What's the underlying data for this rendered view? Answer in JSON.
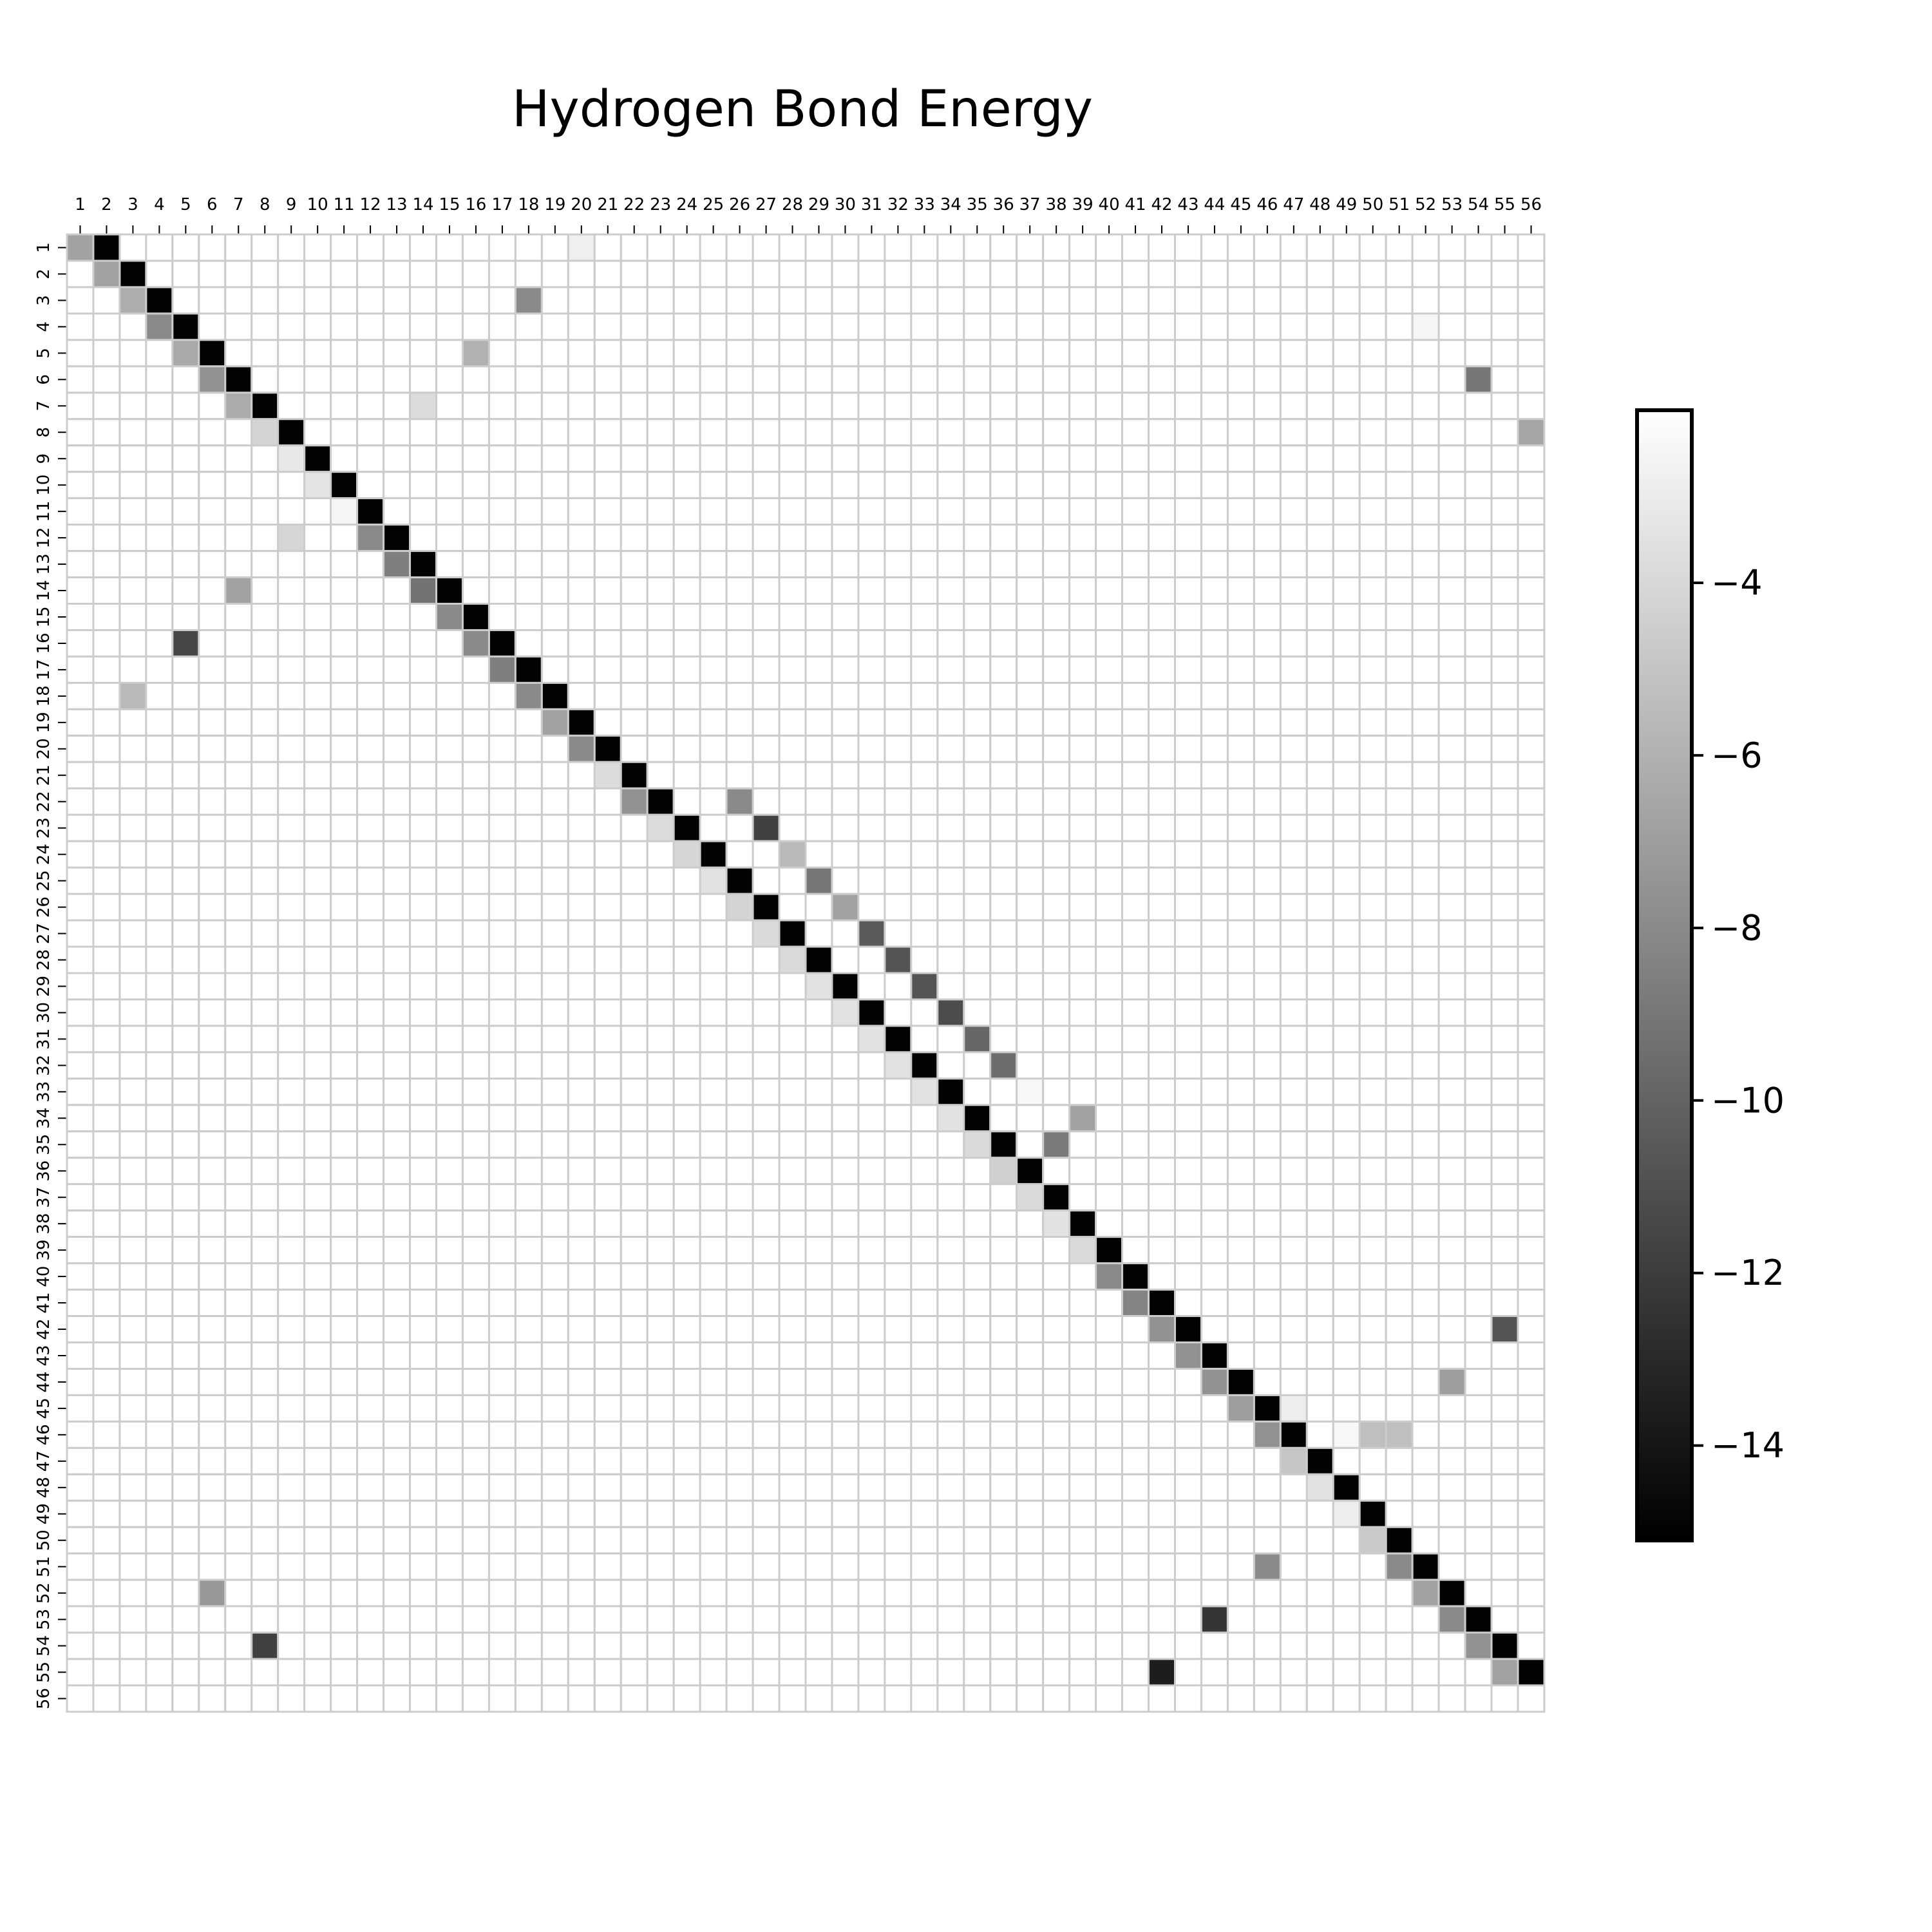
{
  "chart_data": {
    "type": "heatmap",
    "title": "Hydrogen Bond Energy",
    "xlabel": "",
    "ylabel": "",
    "x_tick_labels": [
      "1",
      "2",
      "3",
      "4",
      "5",
      "6",
      "7",
      "8",
      "9",
      "10",
      "11",
      "12",
      "13",
      "14",
      "15",
      "16",
      "17",
      "18",
      "19",
      "20",
      "21",
      "22",
      "23",
      "24",
      "25",
      "26",
      "27",
      "28",
      "29",
      "30",
      "31",
      "32",
      "33",
      "34",
      "35",
      "36",
      "37",
      "38",
      "39",
      "40",
      "41",
      "42",
      "43",
      "44",
      "45",
      "46",
      "47",
      "48",
      "49",
      "50",
      "51",
      "52",
      "53",
      "54",
      "55",
      "56"
    ],
    "y_tick_labels": [
      "1",
      "2",
      "3",
      "4",
      "5",
      "6",
      "7",
      "8",
      "9",
      "10",
      "11",
      "12",
      "13",
      "14",
      "15",
      "16",
      "17",
      "18",
      "19",
      "20",
      "21",
      "22",
      "23",
      "24",
      "25",
      "26",
      "27",
      "28",
      "29",
      "30",
      "31",
      "32",
      "33",
      "34",
      "35",
      "36",
      "37",
      "38",
      "39",
      "40",
      "41",
      "42",
      "43",
      "44",
      "45",
      "46",
      "47",
      "48",
      "49",
      "50",
      "51",
      "52",
      "53",
      "54",
      "55",
      "56"
    ],
    "x_ticks_position": "top",
    "cell_gap_color": "#cccccc",
    "empty_value": -2,
    "colormap": "gray",
    "color_range": [
      -15.1,
      -2.0
    ],
    "colorbar": {
      "position": "right",
      "ticks": [
        -4,
        -6,
        -8,
        -10,
        -12,
        -14
      ],
      "tick_labels": [
        "−4",
        "−6",
        "−8",
        "−10",
        "−12",
        "−14"
      ]
    },
    "cells": [
      {
        "row": 1,
        "col": 1,
        "value": -6.8
      },
      {
        "row": 1,
        "col": 2,
        "value": -15.0
      },
      {
        "row": 1,
        "col": 20,
        "value": -2.8
      },
      {
        "row": 2,
        "col": 2,
        "value": -6.8
      },
      {
        "row": 2,
        "col": 3,
        "value": -15.0
      },
      {
        "row": 3,
        "col": 3,
        "value": -6.2
      },
      {
        "row": 3,
        "col": 4,
        "value": -15.0
      },
      {
        "row": 3,
        "col": 18,
        "value": -8.0
      },
      {
        "row": 4,
        "col": 4,
        "value": -8.0
      },
      {
        "row": 4,
        "col": 5,
        "value": -15.0
      },
      {
        "row": 4,
        "col": 52,
        "value": -2.5
      },
      {
        "row": 5,
        "col": 5,
        "value": -6.4
      },
      {
        "row": 5,
        "col": 6,
        "value": -15.0
      },
      {
        "row": 5,
        "col": 16,
        "value": -6.0
      },
      {
        "row": 6,
        "col": 6,
        "value": -7.6
      },
      {
        "row": 6,
        "col": 7,
        "value": -15.0
      },
      {
        "row": 6,
        "col": 54,
        "value": -9.0
      },
      {
        "row": 7,
        "col": 7,
        "value": -6.3
      },
      {
        "row": 7,
        "col": 8,
        "value": -15.0
      },
      {
        "row": 7,
        "col": 14,
        "value": -3.8
      },
      {
        "row": 8,
        "col": 8,
        "value": -4.2
      },
      {
        "row": 8,
        "col": 9,
        "value": -15.0
      },
      {
        "row": 8,
        "col": 56,
        "value": -6.6
      },
      {
        "row": 9,
        "col": 9,
        "value": -3.2
      },
      {
        "row": 9,
        "col": 10,
        "value": -15.0
      },
      {
        "row": 10,
        "col": 10,
        "value": -3.4
      },
      {
        "row": 10,
        "col": 11,
        "value": -15.0
      },
      {
        "row": 11,
        "col": 11,
        "value": -2.5
      },
      {
        "row": 11,
        "col": 12,
        "value": -15.0
      },
      {
        "row": 12,
        "col": 9,
        "value": -4.1
      },
      {
        "row": 12,
        "col": 12,
        "value": -8.0
      },
      {
        "row": 12,
        "col": 13,
        "value": -15.0
      },
      {
        "row": 13,
        "col": 13,
        "value": -8.6
      },
      {
        "row": 13,
        "col": 14,
        "value": -15.0
      },
      {
        "row": 14,
        "col": 7,
        "value": -6.8
      },
      {
        "row": 14,
        "col": 14,
        "value": -9.2
      },
      {
        "row": 14,
        "col": 15,
        "value": -15.0
      },
      {
        "row": 15,
        "col": 15,
        "value": -8.0
      },
      {
        "row": 15,
        "col": 16,
        "value": -15.0
      },
      {
        "row": 16,
        "col": 5,
        "value": -11.5
      },
      {
        "row": 16,
        "col": 16,
        "value": -8.0
      },
      {
        "row": 16,
        "col": 17,
        "value": -15.0
      },
      {
        "row": 17,
        "col": 17,
        "value": -8.6
      },
      {
        "row": 17,
        "col": 18,
        "value": -15.0
      },
      {
        "row": 18,
        "col": 3,
        "value": -5.6
      },
      {
        "row": 18,
        "col": 18,
        "value": -8.0
      },
      {
        "row": 18,
        "col": 19,
        "value": -15.0
      },
      {
        "row": 19,
        "col": 19,
        "value": -6.8
      },
      {
        "row": 19,
        "col": 20,
        "value": -15.0
      },
      {
        "row": 20,
        "col": 20,
        "value": -8.0
      },
      {
        "row": 20,
        "col": 21,
        "value": -15.0
      },
      {
        "row": 21,
        "col": 21,
        "value": -3.8
      },
      {
        "row": 21,
        "col": 22,
        "value": -15.0
      },
      {
        "row": 22,
        "col": 22,
        "value": -7.6
      },
      {
        "row": 22,
        "col": 23,
        "value": -15.0
      },
      {
        "row": 22,
        "col": 26,
        "value": -8.0
      },
      {
        "row": 23,
        "col": 23,
        "value": -3.8
      },
      {
        "row": 23,
        "col": 24,
        "value": -15.0
      },
      {
        "row": 23,
        "col": 27,
        "value": -11.8
      },
      {
        "row": 24,
        "col": 24,
        "value": -4.1
      },
      {
        "row": 24,
        "col": 25,
        "value": -15.0
      },
      {
        "row": 24,
        "col": 28,
        "value": -5.6
      },
      {
        "row": 25,
        "col": 25,
        "value": -3.5
      },
      {
        "row": 25,
        "col": 26,
        "value": -15.0
      },
      {
        "row": 25,
        "col": 29,
        "value": -9.0
      },
      {
        "row": 26,
        "col": 26,
        "value": -4.2
      },
      {
        "row": 26,
        "col": 27,
        "value": -15.0
      },
      {
        "row": 26,
        "col": 30,
        "value": -6.8
      },
      {
        "row": 27,
        "col": 27,
        "value": -3.9
      },
      {
        "row": 27,
        "col": 28,
        "value": -15.0
      },
      {
        "row": 27,
        "col": 31,
        "value": -10.5
      },
      {
        "row": 28,
        "col": 28,
        "value": -3.9
      },
      {
        "row": 28,
        "col": 29,
        "value": -15.0
      },
      {
        "row": 28,
        "col": 32,
        "value": -10.8
      },
      {
        "row": 29,
        "col": 29,
        "value": -3.5
      },
      {
        "row": 29,
        "col": 30,
        "value": -15.0
      },
      {
        "row": 29,
        "col": 33,
        "value": -10.8
      },
      {
        "row": 30,
        "col": 30,
        "value": -3.5
      },
      {
        "row": 30,
        "col": 31,
        "value": -15.0
      },
      {
        "row": 30,
        "col": 34,
        "value": -11.2
      },
      {
        "row": 31,
        "col": 31,
        "value": -3.5
      },
      {
        "row": 31,
        "col": 32,
        "value": -15.0
      },
      {
        "row": 31,
        "col": 35,
        "value": -9.8
      },
      {
        "row": 32,
        "col": 32,
        "value": -3.5
      },
      {
        "row": 32,
        "col": 33,
        "value": -15.0
      },
      {
        "row": 32,
        "col": 36,
        "value": -9.5
      },
      {
        "row": 33,
        "col": 33,
        "value": -3.5
      },
      {
        "row": 33,
        "col": 34,
        "value": -15.0
      },
      {
        "row": 33,
        "col": 37,
        "value": -2.4
      },
      {
        "row": 34,
        "col": 34,
        "value": -3.5
      },
      {
        "row": 34,
        "col": 35,
        "value": -15.0
      },
      {
        "row": 34,
        "col": 39,
        "value": -6.8
      },
      {
        "row": 35,
        "col": 35,
        "value": -3.9
      },
      {
        "row": 35,
        "col": 36,
        "value": -15.0
      },
      {
        "row": 35,
        "col": 38,
        "value": -8.8
      },
      {
        "row": 36,
        "col": 36,
        "value": -4.4
      },
      {
        "row": 36,
        "col": 37,
        "value": -15.0
      },
      {
        "row": 37,
        "col": 37,
        "value": -3.9
      },
      {
        "row": 37,
        "col": 38,
        "value": -15.0
      },
      {
        "row": 38,
        "col": 38,
        "value": -3.5
      },
      {
        "row": 38,
        "col": 39,
        "value": -15.0
      },
      {
        "row": 39,
        "col": 39,
        "value": -3.9
      },
      {
        "row": 39,
        "col": 40,
        "value": -15.0
      },
      {
        "row": 40,
        "col": 40,
        "value": -8.0
      },
      {
        "row": 40,
        "col": 41,
        "value": -15.0
      },
      {
        "row": 41,
        "col": 41,
        "value": -8.3
      },
      {
        "row": 41,
        "col": 42,
        "value": -15.0
      },
      {
        "row": 42,
        "col": 42,
        "value": -7.6
      },
      {
        "row": 42,
        "col": 43,
        "value": -15.0
      },
      {
        "row": 42,
        "col": 55,
        "value": -10.8
      },
      {
        "row": 43,
        "col": 43,
        "value": -7.6
      },
      {
        "row": 43,
        "col": 44,
        "value": -15.0
      },
      {
        "row": 44,
        "col": 44,
        "value": -7.6
      },
      {
        "row": 44,
        "col": 45,
        "value": -15.0
      },
      {
        "row": 44,
        "col": 53,
        "value": -7.0
      },
      {
        "row": 45,
        "col": 45,
        "value": -7.0
      },
      {
        "row": 45,
        "col": 46,
        "value": -15.0
      },
      {
        "row": 45,
        "col": 47,
        "value": -2.9
      },
      {
        "row": 46,
        "col": 46,
        "value": -7.6
      },
      {
        "row": 46,
        "col": 47,
        "value": -15.0
      },
      {
        "row": 46,
        "col": 49,
        "value": -2.4
      },
      {
        "row": 46,
        "col": 50,
        "value": -5.3
      },
      {
        "row": 46,
        "col": 51,
        "value": -5.3
      },
      {
        "row": 47,
        "col": 47,
        "value": -5.0
      },
      {
        "row": 47,
        "col": 48,
        "value": -15.0
      },
      {
        "row": 48,
        "col": 48,
        "value": -3.5
      },
      {
        "row": 48,
        "col": 49,
        "value": -15.0
      },
      {
        "row": 49,
        "col": 49,
        "value": -2.9
      },
      {
        "row": 49,
        "col": 50,
        "value": -15.0
      },
      {
        "row": 50,
        "col": 50,
        "value": -4.7
      },
      {
        "row": 50,
        "col": 51,
        "value": -15.0
      },
      {
        "row": 51,
        "col": 46,
        "value": -8.0
      },
      {
        "row": 51,
        "col": 51,
        "value": -8.0
      },
      {
        "row": 51,
        "col": 52,
        "value": -15.0
      },
      {
        "row": 52,
        "col": 6,
        "value": -7.3
      },
      {
        "row": 52,
        "col": 52,
        "value": -6.8
      },
      {
        "row": 52,
        "col": 53,
        "value": -15.0
      },
      {
        "row": 53,
        "col": 44,
        "value": -12.4
      },
      {
        "row": 53,
        "col": 53,
        "value": -8.0
      },
      {
        "row": 53,
        "col": 54,
        "value": -15.0
      },
      {
        "row": 54,
        "col": 8,
        "value": -11.8
      },
      {
        "row": 54,
        "col": 54,
        "value": -7.6
      },
      {
        "row": 54,
        "col": 55,
        "value": -15.0
      },
      {
        "row": 55,
        "col": 42,
        "value": -13.6
      },
      {
        "row": 55,
        "col": 55,
        "value": -6.8
      },
      {
        "row": 55,
        "col": 56,
        "value": -15.0
      }
    ]
  }
}
